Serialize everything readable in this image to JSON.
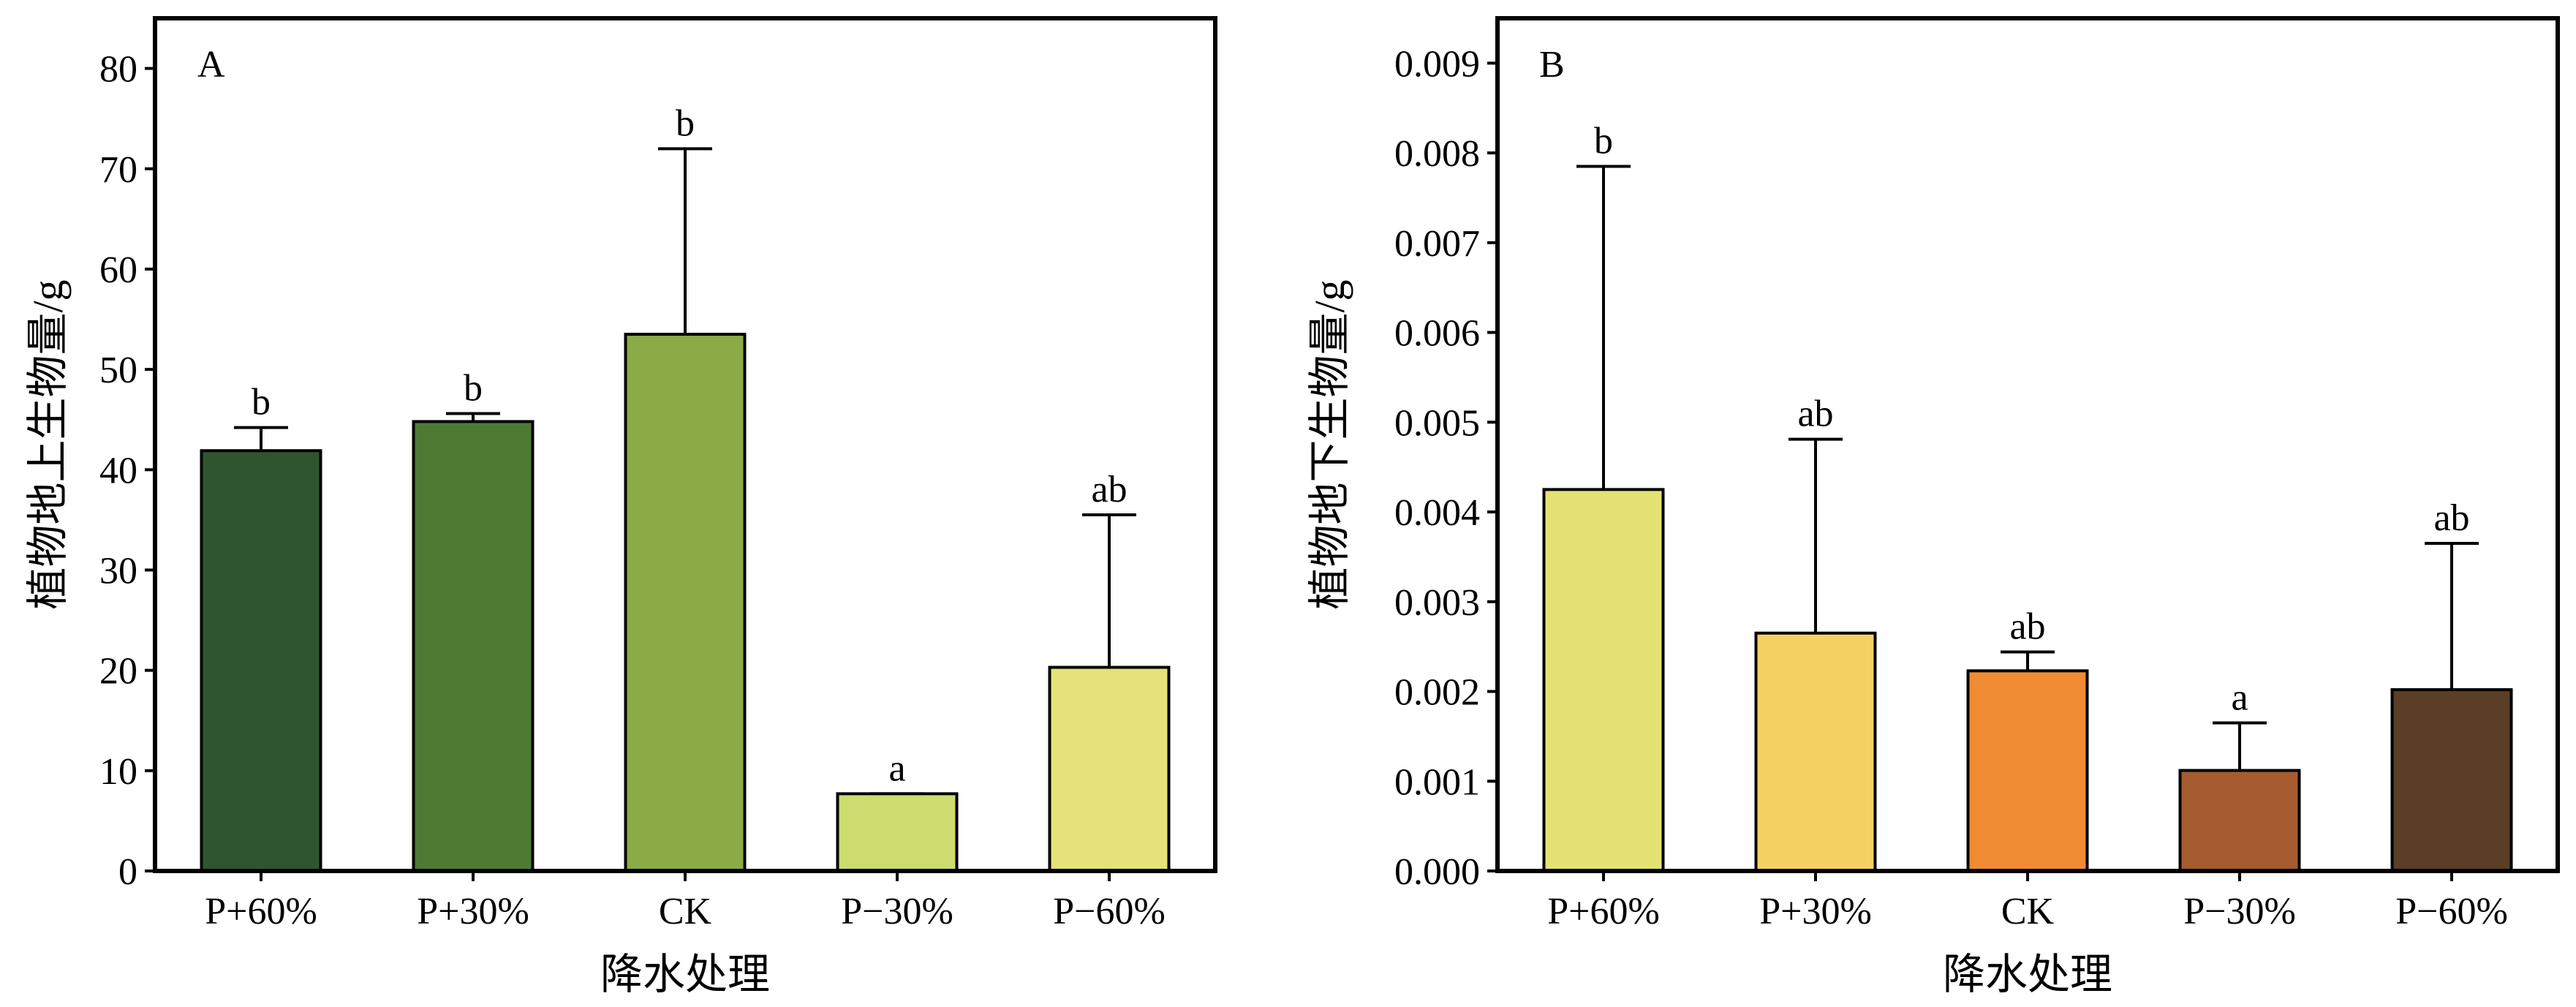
{
  "chart_data": [
    {
      "type": "bar",
      "panel_label": "A",
      "categories": [
        "P+60%",
        "P+30%",
        "CK",
        "P−30%",
        "P−60%"
      ],
      "values": [
        41.9,
        44.8,
        53.5,
        7.7,
        20.3
      ],
      "error_upper": [
        44.2,
        45.6,
        72.0,
        7.7,
        35.5
      ],
      "error_lower": [
        41.9,
        44.8,
        53.5,
        6.9,
        20.3
      ],
      "significance": [
        "b",
        "b",
        "b",
        "a",
        "ab"
      ],
      "colors": [
        "#2f5530",
        "#4e7b34",
        "#8aab46",
        "#ccdc6e",
        "#e4e279"
      ],
      "xlabel": "降水处理",
      "ylabel": "植物地上生物量/g",
      "ylim": [
        0,
        85
      ],
      "yticks": [
        0,
        10,
        20,
        30,
        40,
        50,
        60,
        70,
        80
      ],
      "ytick_labels": [
        "0",
        "10",
        "20",
        "30",
        "40",
        "50",
        "60",
        "70",
        "80"
      ],
      "grid": false
    },
    {
      "type": "bar",
      "panel_label": "B",
      "categories": [
        "P+60%",
        "P+30%",
        "CK",
        "P−30%",
        "P−60%"
      ],
      "values": [
        0.00425,
        0.00265,
        0.00223,
        0.00112,
        0.00202
      ],
      "error_upper": [
        0.00785,
        0.00481,
        0.00244,
        0.00165,
        0.00365
      ],
      "error_lower": [
        0.00425,
        0.00265,
        0.00223,
        0.00112,
        0.00202
      ],
      "significance": [
        "b",
        "ab",
        "ab",
        "a",
        "ab"
      ],
      "colors": [
        "#e4e272",
        "#f5d162",
        "#ef8b33",
        "#a65c2e",
        "#5a3e26"
      ],
      "xlabel": "降水处理",
      "ylabel": "植物地下生物量/g",
      "ylim": [
        0,
        0.0095
      ],
      "yticks": [
        0,
        0.001,
        0.002,
        0.003,
        0.004,
        0.005,
        0.006,
        0.007,
        0.008,
        0.009
      ],
      "ytick_labels": [
        "0.000",
        "0.001",
        "0.002",
        "0.003",
        "0.004",
        "0.005",
        "0.006",
        "0.007",
        "0.008",
        "0.009"
      ],
      "grid": false
    }
  ]
}
